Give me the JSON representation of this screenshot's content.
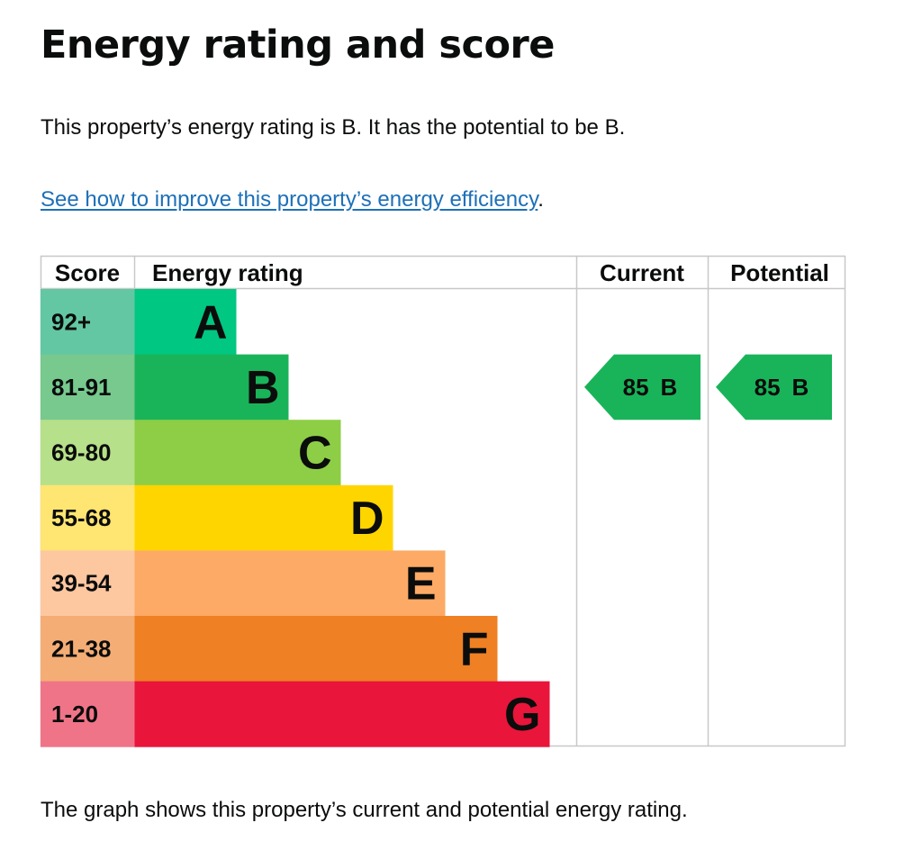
{
  "page": {
    "title": "Energy rating and score",
    "summary": "This property’s energy rating is B. It has the potential to be B.",
    "improve_link": "See how to improve this property’s energy efficiency",
    "improve_suffix": ".",
    "footer": "The graph shows this property’s current and potential energy rating."
  },
  "chart_data": {
    "type": "bar",
    "columns": [
      "Score",
      "Energy rating",
      "Current",
      "Potential"
    ],
    "bands": [
      {
        "letter": "A",
        "score": "92+",
        "color": "#00c781",
        "score_bg": "#63c7a3"
      },
      {
        "letter": "B",
        "score": "81-91",
        "color": "#19b459",
        "score_bg": "#77c98e"
      },
      {
        "letter": "C",
        "score": "69-80",
        "color": "#8dce46",
        "score_bg": "#b6e08a"
      },
      {
        "letter": "D",
        "score": "55-68",
        "color": "#ffd500",
        "score_bg": "#ffe571"
      },
      {
        "letter": "E",
        "score": "39-54",
        "color": "#fcaa65",
        "score_bg": "#fdc7a0"
      },
      {
        "letter": "F",
        "score": "21-38",
        "color": "#ef8023",
        "score_bg": "#f4ad75"
      },
      {
        "letter": "G",
        "score": "1-20",
        "color": "#e9153b",
        "score_bg": "#f07488"
      }
    ],
    "current": {
      "score": "85",
      "letter": "B",
      "band": "B",
      "color": "#19b459"
    },
    "potential": {
      "score": "85",
      "letter": "B",
      "band": "B",
      "color": "#19b459"
    }
  }
}
